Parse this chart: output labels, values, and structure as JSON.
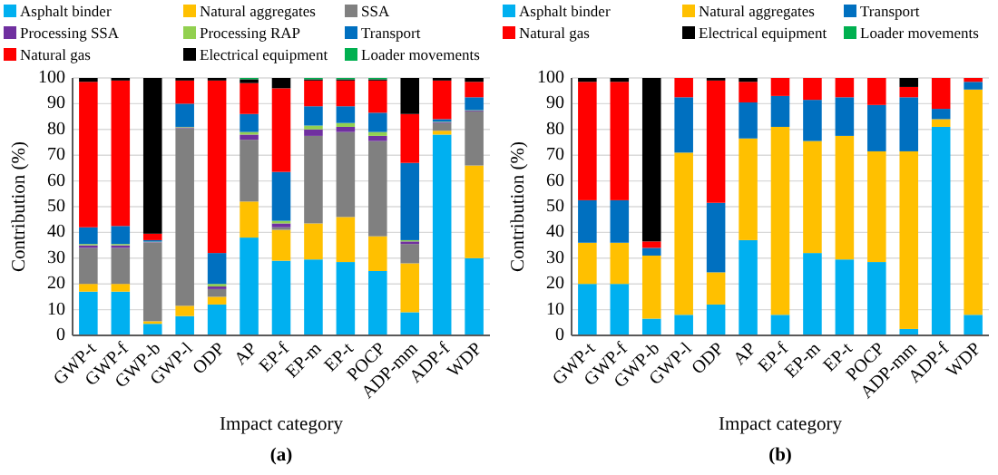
{
  "chart_data": [
    {
      "type": "bar",
      "title": "(a)",
      "xlabel": "Impact category",
      "ylabel": "Contribution (%)",
      "stacked": true,
      "grid": "y",
      "legend": "top",
      "ylim": [
        0,
        100
      ],
      "yticks": [
        0,
        10,
        20,
        30,
        40,
        50,
        60,
        70,
        80,
        90,
        100
      ],
      "categories": [
        "GWP-t",
        "GWP-f",
        "GWP-b",
        "GWP-l",
        "ODP",
        "AP",
        "EP-f",
        "EP-m",
        "EP-t",
        "POCP",
        "ADP-mm",
        "ADP-f",
        "WDP"
      ],
      "series": [
        {
          "name": "Asphalt binder",
          "color": "#00b0f0",
          "values": [
            17,
            17,
            4.5,
            7.5,
            12,
            38,
            29,
            29.5,
            28.5,
            25,
            9,
            78,
            30
          ]
        },
        {
          "name": "Natural aggregates",
          "color": "#ffc000",
          "values": [
            3,
            3,
            1,
            4,
            3,
            14,
            12,
            14,
            17.5,
            13.5,
            19,
            1.5,
            36
          ]
        },
        {
          "name": "SSA",
          "color": "#808080",
          "values": [
            14,
            14,
            30.5,
            69,
            3,
            24,
            1,
            34,
            33,
            37,
            7.5,
            3,
            21
          ]
        },
        {
          "name": "Processing SSA",
          "color": "#7030a0",
          "values": [
            1,
            1,
            0.2,
            0.3,
            1,
            2,
            1.5,
            2.5,
            2,
            2,
            1,
            0.3,
            0.3
          ]
        },
        {
          "name": "Processing RAP",
          "color": "#92d050",
          "values": [
            0.5,
            0.5,
            0.2,
            0.2,
            1,
            1,
            1,
            1.5,
            1.5,
            1.5,
            0.5,
            0.2,
            0.2
          ]
        },
        {
          "name": "Transport",
          "color": "#0070c0",
          "values": [
            6.5,
            7,
            0.6,
            9,
            12,
            7,
            19,
            7.5,
            6.5,
            7.5,
            30,
            1,
            5
          ]
        },
        {
          "name": "Natural gas",
          "color": "#ff0000",
          "values": [
            56.5,
            56.5,
            2.5,
            9,
            67,
            12,
            32.5,
            10,
            10,
            12.5,
            19,
            15,
            6
          ]
        },
        {
          "name": "Electrical equipment",
          "color": "#000000",
          "values": [
            1.5,
            1,
            60.5,
            1,
            1,
            1.5,
            4,
            0.5,
            0.5,
            0.5,
            14,
            1,
            1.5
          ]
        },
        {
          "name": "Loader movements",
          "color": "#00b050",
          "values": [
            0,
            0,
            0,
            0,
            0,
            0.5,
            0,
            0.5,
            0.5,
            0.5,
            0,
            0,
            0
          ]
        }
      ]
    },
    {
      "type": "bar",
      "title": "(b)",
      "xlabel": "Impact category",
      "ylabel": "Contribution (%)",
      "stacked": true,
      "grid": "y",
      "legend": "top",
      "ylim": [
        0,
        100
      ],
      "yticks": [
        0,
        10,
        20,
        30,
        40,
        50,
        60,
        70,
        80,
        90,
        100
      ],
      "categories": [
        "GWP-t",
        "GWP-f",
        "GWP-b",
        "GWP-l",
        "ODP",
        "AP",
        "EP-f",
        "EP-m",
        "EP-t",
        "POCP",
        "ADP-mm",
        "ADP-f",
        "WDP"
      ],
      "series": [
        {
          "name": "Asphalt binder",
          "color": "#00b0f0",
          "values": [
            20,
            20,
            6.5,
            8,
            12,
            37,
            8,
            32,
            29.5,
            28.5,
            2.5,
            81,
            8
          ]
        },
        {
          "name": "Natural aggregates",
          "color": "#ffc000",
          "values": [
            16,
            16,
            24.5,
            63,
            12.5,
            39.5,
            73,
            43.5,
            48,
            43,
            69,
            3,
            87.5
          ]
        },
        {
          "name": "Transport",
          "color": "#0070c0",
          "values": [
            16.5,
            16.5,
            3,
            21.5,
            27,
            14,
            12,
            16,
            15,
            18,
            21,
            4,
            3
          ]
        },
        {
          "name": "Natural gas",
          "color": "#ff0000",
          "values": [
            46,
            46,
            2.5,
            7.5,
            47.5,
            8,
            7,
            8.5,
            7.5,
            10.5,
            4,
            12,
            1.5
          ]
        },
        {
          "name": "Electrical equipment",
          "color": "#000000",
          "values": [
            1.5,
            1.5,
            63.5,
            0,
            1,
            1.5,
            0,
            0,
            0,
            0,
            3.5,
            0,
            0
          ]
        },
        {
          "name": "Loader movements",
          "color": "#00b050",
          "values": [
            0,
            0,
            0,
            0,
            0,
            0,
            0,
            0,
            0,
            0,
            0,
            0,
            0
          ]
        }
      ]
    }
  ]
}
